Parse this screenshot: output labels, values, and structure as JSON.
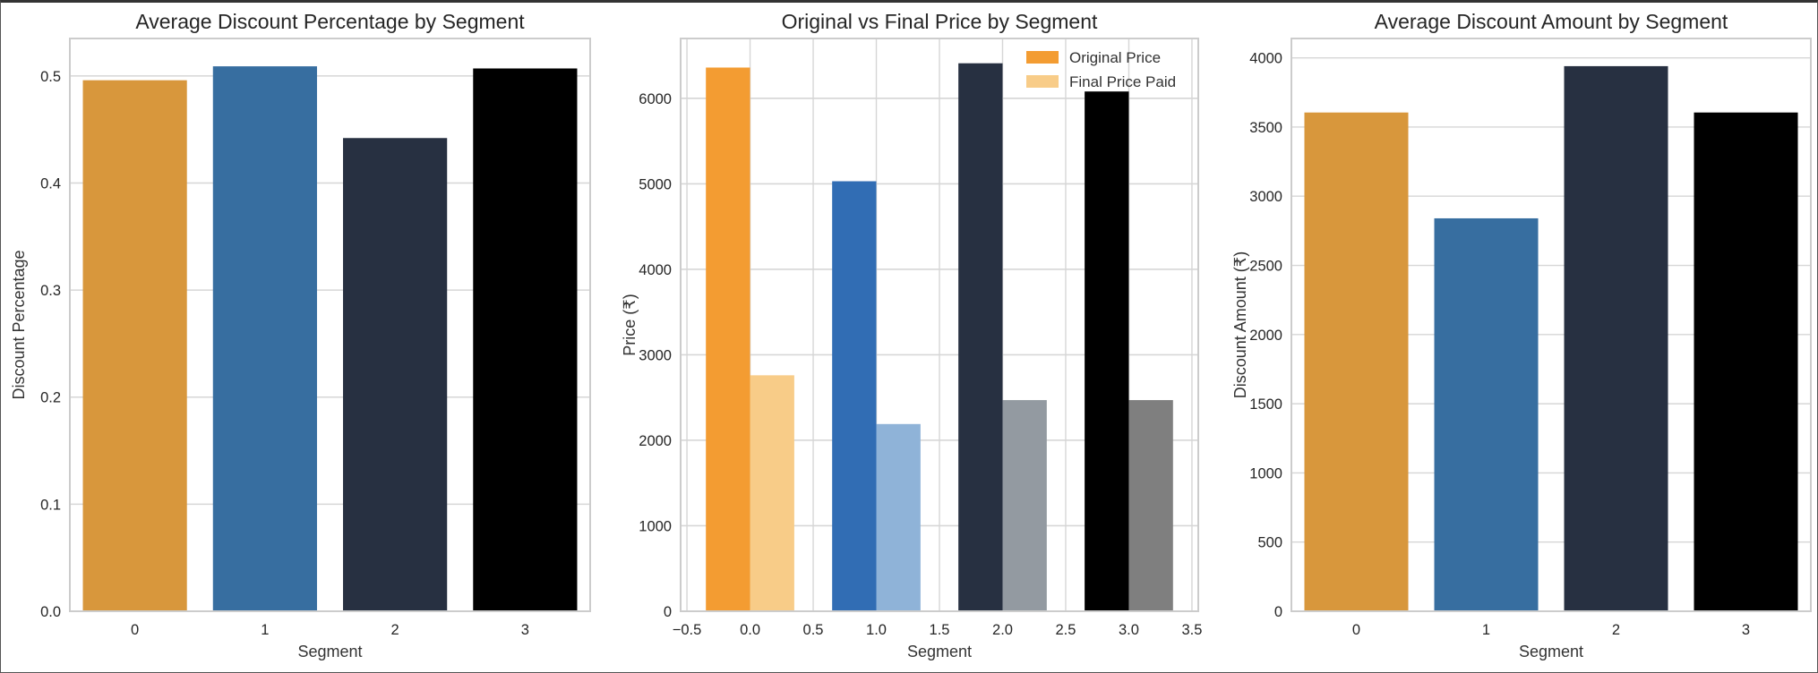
{
  "charts": [
    {
      "type": "bar",
      "title": "Average Discount Percentage by Segment",
      "xlabel": "Segment",
      "ylabel": "Discount Percentage",
      "categories": [
        "0",
        "1",
        "2",
        "3"
      ],
      "values": [
        0.496,
        0.509,
        0.442,
        0.507
      ],
      "colors": [
        "#d8973c",
        "#376ea0",
        "#273041",
        "#000000"
      ],
      "ylim": [
        0,
        0.535
      ],
      "yticks": [
        0.0,
        0.1,
        0.2,
        0.3,
        0.4,
        0.5
      ],
      "ytick_labels": [
        "0.0",
        "0.1",
        "0.2",
        "0.3",
        "0.4",
        "0.5"
      ],
      "grid": true
    },
    {
      "type": "bar",
      "title": "Original vs Final Price by Segment",
      "xlabel": "Segment",
      "ylabel": "Price (₹)",
      "xlim": [
        -0.55,
        3.55
      ],
      "xticks": [
        -0.5,
        0.0,
        0.5,
        1.0,
        1.5,
        2.0,
        2.5,
        3.0,
        3.5
      ],
      "xtick_labels": [
        "−0.5",
        "0.0",
        "0.5",
        "1.0",
        "1.5",
        "2.0",
        "2.5",
        "3.0",
        "3.5"
      ],
      "ylim": [
        0,
        6700
      ],
      "yticks": [
        0,
        1000,
        2000,
        3000,
        4000,
        5000,
        6000
      ],
      "ytick_labels": [
        "0",
        "1000",
        "2000",
        "3000",
        "4000",
        "5000",
        "6000"
      ],
      "segments": [
        0,
        1,
        2,
        3
      ],
      "bar_width": 0.35,
      "series": [
        {
          "name": "Original Price",
          "values": [
            6360,
            5030,
            6410,
            6080
          ],
          "colors": [
            "#f39c32",
            "#316db4",
            "#273041",
            "#000000"
          ]
        },
        {
          "name": "Final Price Paid",
          "values": [
            2760,
            2190,
            2470,
            2470
          ],
          "colors": [
            "#f8cc88",
            "#8fb3d8",
            "#939aa1",
            "#7f7f7f"
          ]
        }
      ],
      "legend": {
        "position": "top-right",
        "swatch_colors": [
          "#f39c32",
          "#f8cc88"
        ]
      },
      "grid": true
    },
    {
      "type": "bar",
      "title": "Average Discount Amount by Segment",
      "xlabel": "Segment",
      "ylabel": "Discount Amount (₹)",
      "categories": [
        "0",
        "1",
        "2",
        "3"
      ],
      "values": [
        3605,
        2840,
        3940,
        3605
      ],
      "colors": [
        "#d8973c",
        "#376ea0",
        "#273041",
        "#000000"
      ],
      "ylim": [
        0,
        4140
      ],
      "yticks": [
        0,
        500,
        1000,
        1500,
        2000,
        2500,
        3000,
        3500,
        4000
      ],
      "ytick_labels": [
        "0",
        "500",
        "1000",
        "1500",
        "2000",
        "2500",
        "3000",
        "3500",
        "4000"
      ],
      "grid": true
    }
  ]
}
